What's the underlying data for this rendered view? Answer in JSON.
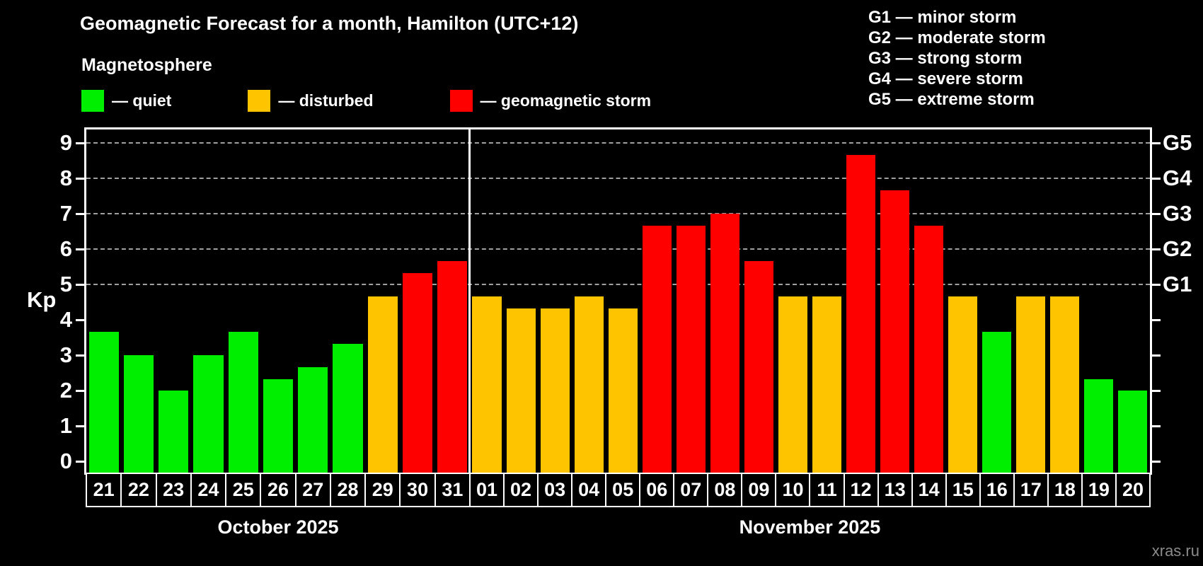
{
  "header": {
    "title": "Geomagnetic Forecast for a month, Hamilton (UTC+12)",
    "subtitle": "Magnetosphere",
    "legend": [
      {
        "key": "quiet",
        "label": "— quiet"
      },
      {
        "key": "disturbed",
        "label": "— disturbed"
      },
      {
        "key": "storm",
        "label": "— geomagnetic storm"
      }
    ],
    "storm_scale": [
      {
        "text": "G1 — minor storm"
      },
      {
        "text": "G2 — moderate storm"
      },
      {
        "text": "G3 — strong storm"
      },
      {
        "text": "G4 — severe storm"
      },
      {
        "text": "G5 — extreme storm"
      }
    ]
  },
  "watermark": "xras.ru",
  "chart_data": {
    "type": "bar",
    "title": "Geomagnetic Forecast for a month, Hamilton (UTC+12)",
    "ylabel": "Kp",
    "ylim": [
      -0.32,
      9.38
    ],
    "yticks": [
      0,
      1,
      2,
      3,
      4,
      5,
      6,
      7,
      8,
      9
    ],
    "grid_levels": [
      5,
      6,
      7,
      8,
      9
    ],
    "grid": true,
    "legend_position": "top",
    "right_axis": [
      {
        "label": "G1",
        "kp": 5
      },
      {
        "label": "G2",
        "kp": 6
      },
      {
        "label": "G3",
        "kp": 7
      },
      {
        "label": "G4",
        "kp": 8
      },
      {
        "label": "G5",
        "kp": 9
      }
    ],
    "colors": {
      "quiet": "#00ee00",
      "disturbed": "#ffc400",
      "storm": "#fe0000"
    },
    "months": [
      {
        "label": "October 2025",
        "width_fraction": 0.3606,
        "days": [
          {
            "day": "21",
            "kp": 3.67,
            "state": "quiet"
          },
          {
            "day": "22",
            "kp": 3.0,
            "state": "quiet"
          },
          {
            "day": "23",
            "kp": 2.0,
            "state": "quiet"
          },
          {
            "day": "24",
            "kp": 3.0,
            "state": "quiet"
          },
          {
            "day": "25",
            "kp": 3.67,
            "state": "quiet"
          },
          {
            "day": "26",
            "kp": 2.33,
            "state": "quiet"
          },
          {
            "day": "27",
            "kp": 2.67,
            "state": "quiet"
          },
          {
            "day": "28",
            "kp": 3.33,
            "state": "quiet"
          },
          {
            "day": "29",
            "kp": 4.67,
            "state": "disturbed"
          },
          {
            "day": "30",
            "kp": 5.33,
            "state": "storm"
          },
          {
            "day": "31",
            "kp": 5.67,
            "state": "storm"
          }
        ]
      },
      {
        "label": "November 2025",
        "width_fraction": 0.6394,
        "days": [
          {
            "day": "01",
            "kp": 4.67,
            "state": "disturbed"
          },
          {
            "day": "02",
            "kp": 4.33,
            "state": "disturbed"
          },
          {
            "day": "03",
            "kp": 4.33,
            "state": "disturbed"
          },
          {
            "day": "04",
            "kp": 4.67,
            "state": "disturbed"
          },
          {
            "day": "05",
            "kp": 4.33,
            "state": "disturbed"
          },
          {
            "day": "06",
            "kp": 6.67,
            "state": "storm"
          },
          {
            "day": "07",
            "kp": 6.67,
            "state": "storm"
          },
          {
            "day": "08",
            "kp": 7.0,
            "state": "storm"
          },
          {
            "day": "09",
            "kp": 5.67,
            "state": "storm"
          },
          {
            "day": "10",
            "kp": 4.67,
            "state": "disturbed"
          },
          {
            "day": "11",
            "kp": 4.67,
            "state": "disturbed"
          },
          {
            "day": "12",
            "kp": 8.67,
            "state": "storm"
          },
          {
            "day": "13",
            "kp": 7.67,
            "state": "storm"
          },
          {
            "day": "14",
            "kp": 6.67,
            "state": "storm"
          },
          {
            "day": "15",
            "kp": 4.67,
            "state": "disturbed"
          },
          {
            "day": "16",
            "kp": 3.67,
            "state": "quiet"
          },
          {
            "day": "17",
            "kp": 4.67,
            "state": "disturbed"
          },
          {
            "day": "18",
            "kp": 4.67,
            "state": "disturbed"
          },
          {
            "day": "19",
            "kp": 2.33,
            "state": "quiet"
          },
          {
            "day": "20",
            "kp": 2.0,
            "state": "quiet"
          }
        ]
      }
    ]
  }
}
